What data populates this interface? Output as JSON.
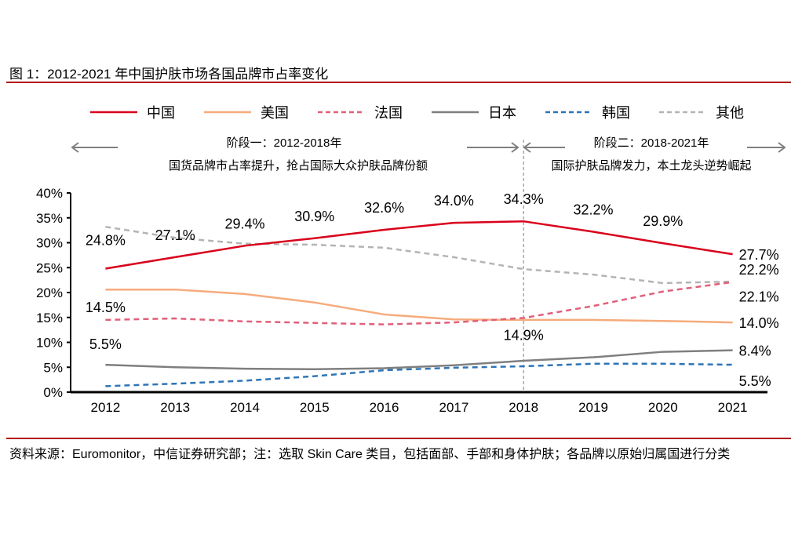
{
  "title": "图 1：2012-2021 年中国护肤市场各国品牌市占率变化",
  "source": "资料来源：Euromonitor，中信证券研究部；注：选取 Skin Care 类目，包括面部、手部和身体护肤；各品牌以原始归属国进行分类",
  "annotations": {
    "phase1_title": "阶段一：2012-2018年",
    "phase1_desc": "国货品牌市占率提升，抢占国际大众护肤品牌份额",
    "phase2_title": "阶段二：2018-2021年",
    "phase2_desc": "国际护肤品牌发力，本土龙头逆势崛起"
  },
  "chart_data": {
    "type": "line",
    "title": "",
    "xlabel": "",
    "ylabel": "",
    "categories": [
      "2012",
      "2013",
      "2014",
      "2015",
      "2016",
      "2017",
      "2018",
      "2019",
      "2020",
      "2021"
    ],
    "ylim": [
      0,
      40
    ],
    "yticks": [
      "0%",
      "5%",
      "10%",
      "15%",
      "20%",
      "25%",
      "30%",
      "35%",
      "40%"
    ],
    "grid": false,
    "legend": "top",
    "divider_at": "2018",
    "series": [
      {
        "name": "中国",
        "color": "#d9001b",
        "dash": false,
        "values": [
          24.8,
          27.1,
          29.4,
          30.9,
          32.6,
          34.0,
          34.3,
          32.2,
          29.9,
          27.7
        ],
        "labels": [
          "24.8%",
          "27.1%",
          "29.4%",
          "30.9%",
          "32.6%",
          "34.0%",
          "34.3%",
          "32.2%",
          "29.9%",
          "27.7%"
        ]
      },
      {
        "name": "美国",
        "color": "#f6ab7c",
        "dash": false,
        "values": [
          20.6,
          20.6,
          19.7,
          18.0,
          15.6,
          14.6,
          14.5,
          14.5,
          14.3,
          14.0
        ],
        "labels": [
          "",
          "",
          "",
          "",
          "",
          "",
          "",
          "",
          "",
          "14.0%"
        ]
      },
      {
        "name": "法国",
        "color": "#e0607a",
        "dash": true,
        "values": [
          14.5,
          14.8,
          14.2,
          13.9,
          13.6,
          14.0,
          14.9,
          17.3,
          20.2,
          22.1
        ],
        "labels": [
          "14.5%",
          "",
          "",
          "",
          "",
          "",
          "14.9%",
          "",
          "",
          "22.1%"
        ]
      },
      {
        "name": "日本",
        "color": "#7f7f7f",
        "dash": false,
        "values": [
          5.5,
          5.0,
          4.7,
          4.6,
          4.8,
          5.4,
          6.3,
          7.0,
          8.1,
          8.4
        ],
        "labels": [
          "5.5%",
          "",
          "",
          "",
          "",
          "",
          "",
          "",
          "",
          "8.4%"
        ]
      },
      {
        "name": "韩国",
        "color": "#2e75b6",
        "dash": true,
        "values": [
          1.2,
          1.7,
          2.3,
          3.2,
          4.4,
          4.9,
          5.2,
          5.7,
          5.7,
          5.5
        ],
        "labels": [
          "",
          "",
          "",
          "",
          "",
          "",
          "",
          "",
          "",
          "5.5%"
        ]
      },
      {
        "name": "其他",
        "color": "#b4b4b4",
        "dash": true,
        "values": [
          33.2,
          31.0,
          29.8,
          29.6,
          29.0,
          27.1,
          24.7,
          23.6,
          21.9,
          22.2
        ],
        "labels": [
          "",
          "",
          "",
          "",
          "",
          "",
          "",
          "",
          "",
          "22.2%"
        ]
      }
    ]
  }
}
